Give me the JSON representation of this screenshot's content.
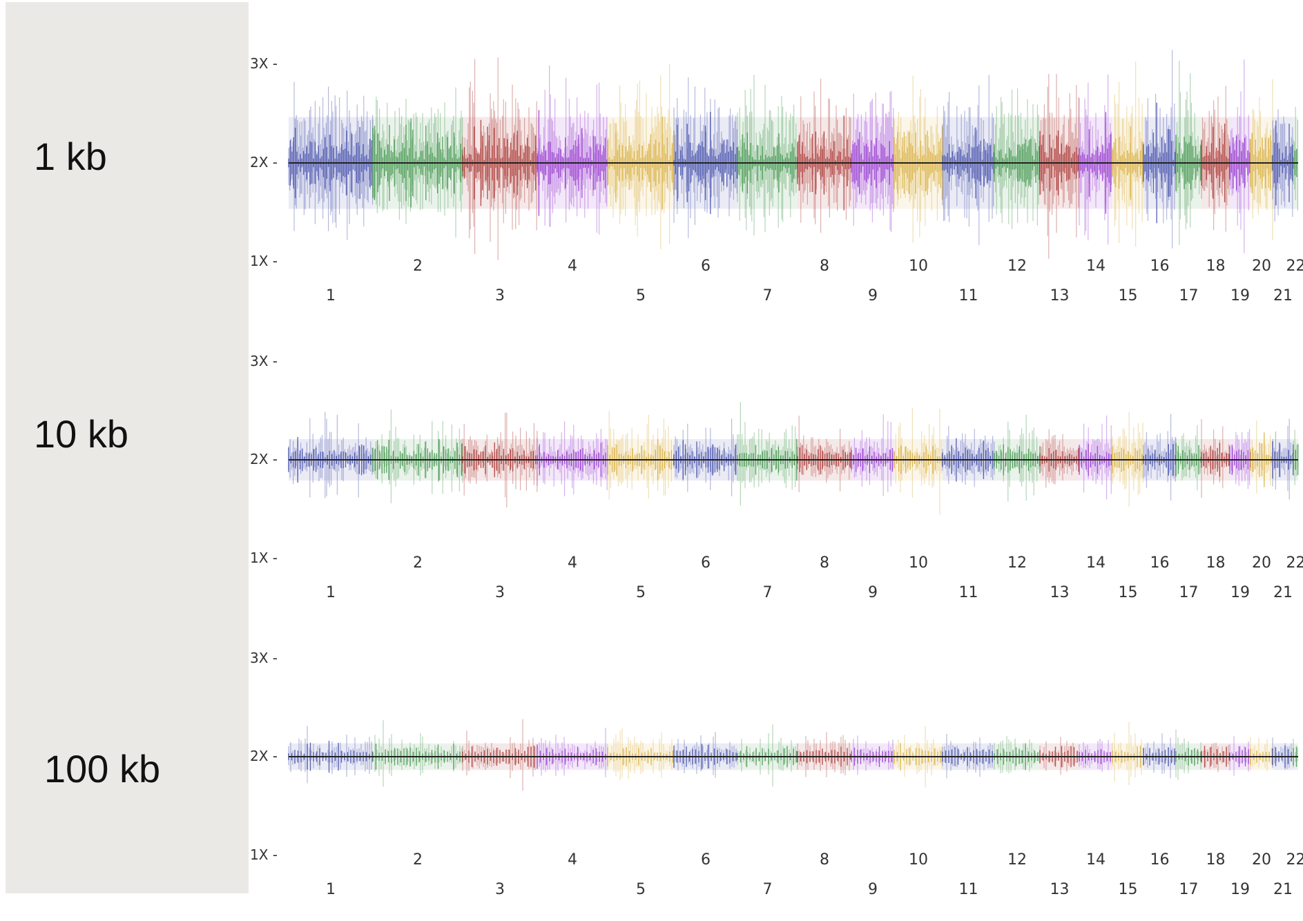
{
  "chart_data": {
    "type": "scatter",
    "description_free": true,
    "y_ticks": [
      "3X",
      "2X",
      "1X"
    ],
    "chromosomes": [
      "1",
      "2",
      "3",
      "4",
      "5",
      "6",
      "7",
      "8",
      "9",
      "10",
      "11",
      "12",
      "13",
      "14",
      "15",
      "16",
      "17",
      "18",
      "19",
      "20",
      "21",
      "22"
    ],
    "chromosome_colors": [
      "#2e3aa0",
      "#2e8b3a",
      "#a0201c",
      "#8a22c9",
      "#d4a62a"
    ],
    "panels": [
      {
        "resolution_label": "1 kb",
        "noise_spread": 0.62
      },
      {
        "resolution_label": "10 kb",
        "noise_spread": 0.28
      },
      {
        "resolution_label": "100 kb",
        "noise_spread": 0.18
      }
    ],
    "baseline_copy_number": "2X",
    "ylim": [
      "1X",
      "3X"
    ]
  }
}
